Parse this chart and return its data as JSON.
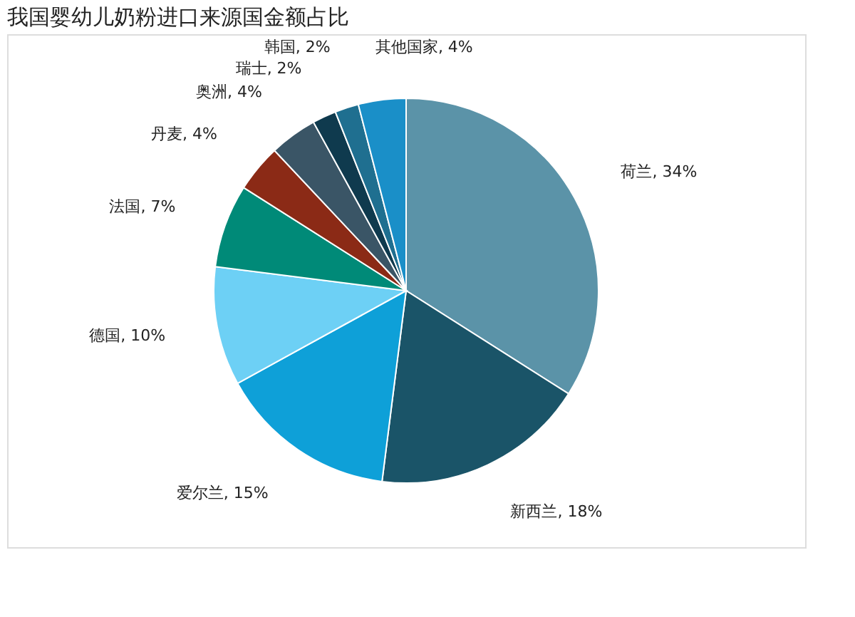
{
  "chart_data": {
    "type": "pie",
    "title": "我国婴幼儿奶粉进口来源国金额占比",
    "categories": [
      "荷兰",
      "新西兰",
      "爱尔兰",
      "德国",
      "法国",
      "丹麦",
      "奥洲",
      "瑞士",
      "韩国",
      "其他国家"
    ],
    "values": [
      34,
      18,
      15,
      10,
      7,
      4,
      4,
      2,
      2,
      4
    ],
    "value_labels": [
      "34%",
      "18%",
      "15%",
      "10%",
      "7%",
      "4%",
      "4%",
      "2%",
      "2%",
      "4%"
    ],
    "colors": [
      "#5b93a8",
      "#1a5468",
      "#0ea0d8",
      "#6dd0f5",
      "#008a78",
      "#8b2a16",
      "#3a5566",
      "#0f3a4e",
      "#1f6f90",
      "#1a8fc8"
    ],
    "legend": false
  }
}
